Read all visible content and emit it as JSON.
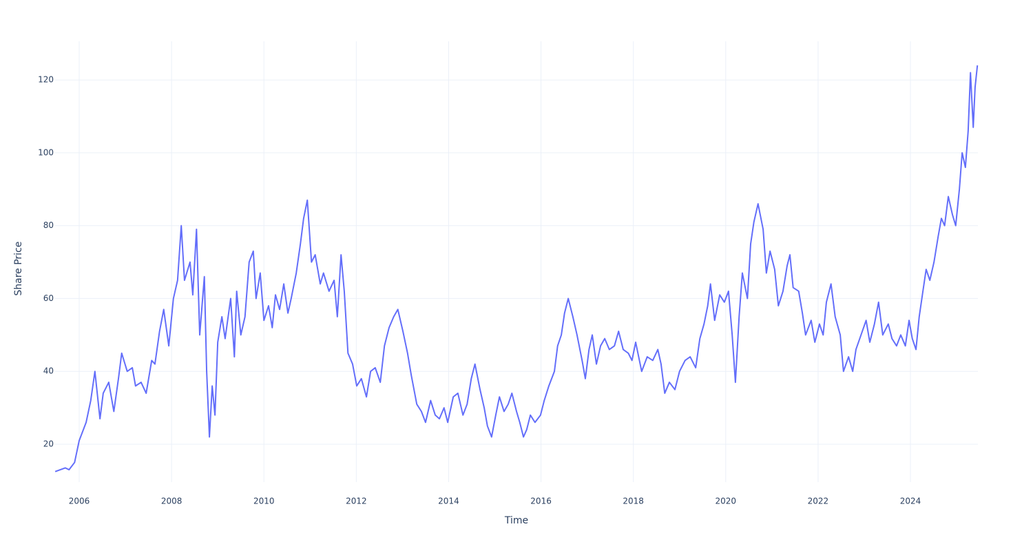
{
  "chart_data": {
    "type": "line",
    "x_label": "Time",
    "y_label": "Share Price",
    "color": "#636efa",
    "grid": true,
    "xlim": [
      2005.478,
      2025.461
    ],
    "ylim": [
      9.6,
      130.6
    ],
    "xticks": [
      2006,
      2008,
      2010,
      2012,
      2014,
      2016,
      2018,
      2020,
      2022,
      2024
    ],
    "yticks": [
      20,
      40,
      60,
      80,
      100,
      120
    ],
    "x": [
      2005.48,
      2005.7,
      2005.78,
      2005.9,
      2006.0,
      2006.15,
      2006.25,
      2006.34,
      2006.45,
      2006.52,
      2006.64,
      2006.75,
      2006.85,
      2006.92,
      2007.04,
      2007.15,
      2007.22,
      2007.34,
      2007.45,
      2007.57,
      2007.64,
      2007.74,
      2007.83,
      2007.94,
      2008.04,
      2008.13,
      2008.21,
      2008.28,
      2008.4,
      2008.46,
      2008.54,
      2008.61,
      2008.71,
      2008.76,
      2008.82,
      2008.88,
      2008.94,
      2009.0,
      2009.09,
      2009.16,
      2009.28,
      2009.36,
      2009.41,
      2009.5,
      2009.59,
      2009.68,
      2009.77,
      2009.83,
      2009.92,
      2010.0,
      2010.1,
      2010.18,
      2010.25,
      2010.34,
      2010.43,
      2010.52,
      2010.59,
      2010.7,
      2010.79,
      2010.86,
      2010.94,
      2011.03,
      2011.11,
      2011.22,
      2011.29,
      2011.41,
      2011.52,
      2011.59,
      2011.67,
      2011.74,
      2011.82,
      2011.92,
      2012.01,
      2012.11,
      2012.22,
      2012.31,
      2012.41,
      2012.52,
      2012.61,
      2012.71,
      2012.81,
      2012.9,
      2013.01,
      2013.11,
      2013.19,
      2013.31,
      2013.41,
      2013.5,
      2013.61,
      2013.71,
      2013.8,
      2013.9,
      2013.98,
      2014.1,
      2014.2,
      2014.31,
      2014.4,
      2014.49,
      2014.57,
      2014.68,
      2014.77,
      2014.84,
      2014.93,
      2015.02,
      2015.1,
      2015.2,
      2015.29,
      2015.37,
      2015.47,
      2015.54,
      2015.62,
      2015.69,
      2015.77,
      2015.87,
      2015.99,
      2016.07,
      2016.17,
      2016.29,
      2016.36,
      2016.44,
      2016.51,
      2016.59,
      2016.69,
      2016.78,
      2016.89,
      2016.96,
      2017.04,
      2017.11,
      2017.2,
      2017.29,
      2017.38,
      2017.48,
      2017.59,
      2017.68,
      2017.78,
      2017.89,
      2017.97,
      2018.05,
      2018.18,
      2018.3,
      2018.42,
      2018.53,
      2018.6,
      2018.68,
      2018.78,
      2018.9,
      2019.0,
      2019.12,
      2019.23,
      2019.35,
      2019.44,
      2019.53,
      2019.61,
      2019.67,
      2019.76,
      2019.87,
      2019.97,
      2020.06,
      2020.14,
      2020.21,
      2020.29,
      2020.36,
      2020.47,
      2020.54,
      2020.61,
      2020.7,
      2020.81,
      2020.88,
      2020.96,
      2021.06,
      2021.14,
      2021.24,
      2021.33,
      2021.39,
      2021.46,
      2021.58,
      2021.66,
      2021.73,
      2021.85,
      2021.93,
      2022.03,
      2022.11,
      2022.18,
      2022.28,
      2022.37,
      2022.48,
      2022.55,
      2022.66,
      2022.75,
      2022.82,
      2022.93,
      2023.04,
      2023.12,
      2023.22,
      2023.31,
      2023.4,
      2023.52,
      2023.6,
      2023.7,
      2023.79,
      2023.89,
      2023.97,
      2024.04,
      2024.12,
      2024.19,
      2024.27,
      2024.34,
      2024.42,
      2024.51,
      2024.6,
      2024.67,
      2024.74,
      2024.82,
      2024.91,
      2024.98,
      2025.06,
      2025.12,
      2025.19,
      2025.25,
      2025.3,
      2025.36,
      2025.4,
      2025.45
    ],
    "values": [
      12.5,
      13.5,
      13,
      15,
      21,
      26,
      32,
      40,
      27,
      34,
      37,
      29,
      38,
      45,
      40,
      41,
      36,
      37,
      34,
      43,
      42,
      51,
      57,
      47,
      60,
      65,
      80,
      65,
      70,
      61,
      79,
      50,
      66,
      40,
      22,
      36,
      28,
      48,
      55,
      49,
      60,
      44,
      62,
      50,
      55,
      70,
      73,
      60,
      67,
      54,
      58,
      52,
      61,
      57,
      64,
      56,
      60,
      67,
      75,
      82,
      87,
      70,
      72,
      64,
      67,
      62,
      65,
      55,
      72,
      62,
      45,
      42,
      36,
      38,
      33,
      40,
      41,
      37,
      47,
      52,
      55,
      57,
      51,
      45,
      39,
      31,
      29,
      26,
      32,
      28,
      27,
      30,
      26,
      33,
      34,
      28,
      31,
      38,
      42,
      35,
      30,
      25,
      22,
      28,
      33,
      29,
      31,
      34,
      29,
      26,
      22,
      24,
      28,
      26,
      28,
      32,
      36,
      40,
      47,
      50,
      56,
      60,
      55,
      50,
      43,
      38,
      46,
      50,
      42,
      47,
      49,
      46,
      47,
      51,
      46,
      45,
      43,
      48,
      40,
      44,
      43,
      46,
      42,
      34,
      37,
      35,
      40,
      43,
      44,
      41,
      49,
      53,
      58,
      64,
      54,
      61,
      59,
      62,
      50,
      37,
      55,
      67,
      60,
      75,
      81,
      86,
      79,
      67,
      73,
      68,
      58,
      62,
      69,
      72,
      63,
      62,
      56,
      50,
      54,
      48,
      53,
      50,
      59,
      64,
      55,
      50,
      40,
      44,
      40,
      46,
      50,
      54,
      48,
      53,
      59,
      50,
      53,
      49,
      47,
      50,
      47,
      54,
      49,
      46,
      55,
      62,
      68,
      65,
      70,
      77,
      82,
      80,
      88,
      83,
      80,
      90,
      100,
      96,
      106,
      122,
      107,
      118,
      124
    ]
  }
}
